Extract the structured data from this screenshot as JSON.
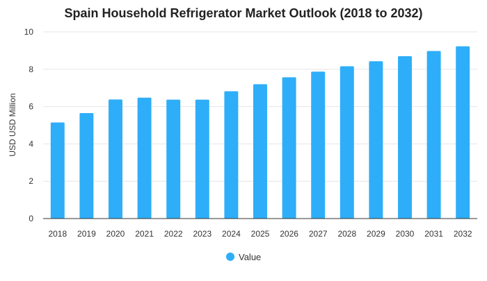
{
  "colors": {
    "bar": "#2EAEF9",
    "grid": "#E6E6E6",
    "axis": "#333333",
    "text": "#333333",
    "title": "#222222"
  },
  "chart_data": {
    "type": "bar",
    "title": "Spain Household Refrigerator Market Outlook (2018 to 2032)",
    "xlabel": "",
    "ylabel": "USD USD Million",
    "categories": [
      "2018",
      "2019",
      "2020",
      "2021",
      "2022",
      "2023",
      "2024",
      "2025",
      "2026",
      "2027",
      "2028",
      "2029",
      "2030",
      "2031",
      "2032"
    ],
    "series": [
      {
        "name": "Value",
        "values": [
          5.15,
          5.65,
          6.38,
          6.48,
          6.37,
          6.37,
          6.82,
          7.2,
          7.57,
          7.87,
          8.16,
          8.43,
          8.7,
          8.98,
          9.23
        ]
      }
    ],
    "ylim": [
      0,
      10
    ],
    "yticks": [
      0,
      2,
      4,
      6,
      8,
      10
    ],
    "grid": true,
    "legend": {
      "position": "bottom-center",
      "items": [
        "Value"
      ]
    }
  }
}
